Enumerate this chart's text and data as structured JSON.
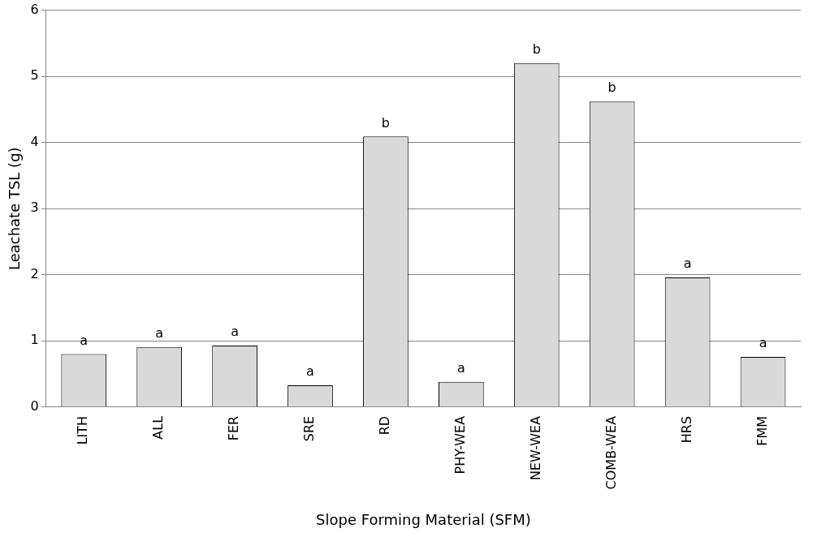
{
  "chart_data": {
    "type": "bar",
    "xlabel": "Slope Forming Material (SFM)",
    "ylabel": "Leachate TSL (g)",
    "categories": [
      "LITH",
      "ALL",
      "FER",
      "SRE",
      "RD",
      "PHY-WEA",
      "NEW-WEA",
      "COMB-WEA",
      "HRS",
      "FMM"
    ],
    "values": [
      0.8,
      0.91,
      0.93,
      0.33,
      4.09,
      0.38,
      5.2,
      4.62,
      1.96,
      0.76
    ],
    "color": "#d9d9d9",
    "ylim": [
      0,
      6
    ],
    "yticks": [
      0,
      1,
      2,
      3,
      4,
      5,
      6
    ],
    "grid": "y",
    "legend": false,
    "annotations": [
      {
        "text": "a",
        "x": "LITH",
        "y": 0.8
      },
      {
        "text": "a",
        "x": "ALL",
        "y": 0.91
      },
      {
        "text": "a",
        "x": "FER",
        "y": 0.93
      },
      {
        "text": "a",
        "x": "SRE",
        "y": 0.33
      },
      {
        "text": "b",
        "x": "RD",
        "y": 4.09
      },
      {
        "text": "a",
        "x": "PHY-WEA",
        "y": 0.38
      },
      {
        "text": "b",
        "x": "NEW-WEA",
        "y": 5.2
      },
      {
        "text": "b",
        "x": "COMB-WEA",
        "y": 4.62
      },
      {
        "text": "a",
        "x": "HRS",
        "y": 1.96
      },
      {
        "text": "a",
        "x": "FMM",
        "y": 0.76
      }
    ]
  }
}
